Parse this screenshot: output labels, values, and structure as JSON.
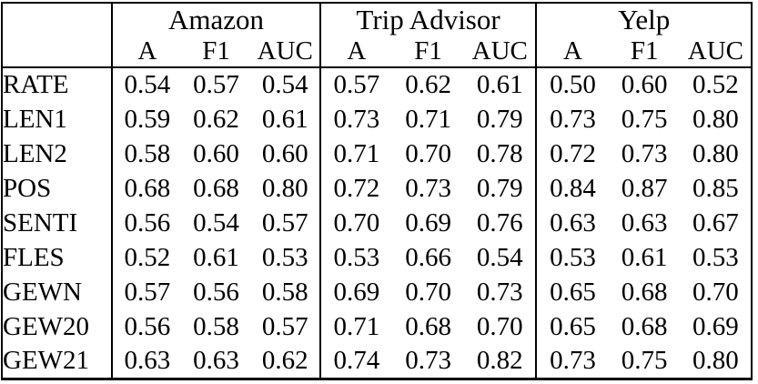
{
  "table": {
    "corner_label": "",
    "groups": [
      {
        "label": "Amazon",
        "subheaders": [
          "A",
          "F1",
          "AUC"
        ]
      },
      {
        "label": "Trip Advisor",
        "subheaders": [
          "A",
          "F1",
          "AUC"
        ]
      },
      {
        "label": "Yelp",
        "subheaders": [
          "A",
          "F1",
          "AUC"
        ]
      }
    ],
    "rows": [
      {
        "label": "RATE",
        "values": [
          "0.54",
          "0.57",
          "0.54",
          "0.57",
          "0.62",
          "0.61",
          "0.50",
          "0.60",
          "0.52"
        ],
        "bold": [
          false,
          false,
          false,
          false,
          false,
          false,
          false,
          false,
          false
        ]
      },
      {
        "label": "LEN1",
        "values": [
          "0.59",
          "0.62",
          "0.61",
          "0.73",
          "0.71",
          "0.79",
          "0.73",
          "0.75",
          "0.80"
        ],
        "bold": [
          false,
          false,
          false,
          false,
          false,
          false,
          false,
          false,
          false
        ]
      },
      {
        "label": "LEN2",
        "values": [
          "0.58",
          "0.60",
          "0.60",
          "0.71",
          "0.70",
          "0.78",
          "0.72",
          "0.73",
          "0.80"
        ],
        "bold": [
          false,
          false,
          false,
          false,
          false,
          false,
          false,
          false,
          false
        ]
      },
      {
        "label": "POS",
        "values": [
          "0.68",
          "0.68",
          "0.80",
          "0.72",
          "0.73",
          "0.79",
          "0.84",
          "0.87",
          "0.85"
        ],
        "bold": [
          true,
          true,
          true,
          false,
          false,
          false,
          true,
          true,
          true
        ]
      },
      {
        "label": "SENTI",
        "values": [
          "0.56",
          "0.54",
          "0.57",
          "0.70",
          "0.69",
          "0.76",
          "0.63",
          "0.63",
          "0.67"
        ],
        "bold": [
          false,
          false,
          false,
          false,
          false,
          false,
          false,
          false,
          false
        ]
      },
      {
        "label": "FLES",
        "values": [
          "0.52",
          "0.61",
          "0.53",
          "0.53",
          "0.66",
          "0.54",
          "0.53",
          "0.61",
          "0.53"
        ],
        "bold": [
          false,
          false,
          false,
          false,
          false,
          false,
          false,
          false,
          false
        ]
      },
      {
        "label": "GEWN",
        "values": [
          "0.57",
          "0.56",
          "0.58",
          "0.69",
          "0.70",
          "0.73",
          "0.65",
          "0.68",
          "0.70"
        ],
        "bold": [
          false,
          false,
          false,
          false,
          false,
          false,
          false,
          false,
          false
        ]
      },
      {
        "label": "GEW20",
        "values": [
          "0.56",
          "0.58",
          "0.57",
          "0.71",
          "0.68",
          "0.70",
          "0.65",
          "0.68",
          "0.69"
        ],
        "bold": [
          false,
          false,
          false,
          false,
          false,
          false,
          false,
          false,
          false
        ]
      },
      {
        "label": "GEW21",
        "values": [
          "0.63",
          "0.63",
          "0.62",
          "0.74",
          "0.73",
          "0.82",
          "0.73",
          "0.75",
          "0.80"
        ],
        "bold": [
          false,
          false,
          false,
          true,
          true,
          true,
          false,
          false,
          false
        ]
      }
    ],
    "colors": {
      "border": "#000000",
      "text": "#000000",
      "background": "#ffffff"
    }
  }
}
